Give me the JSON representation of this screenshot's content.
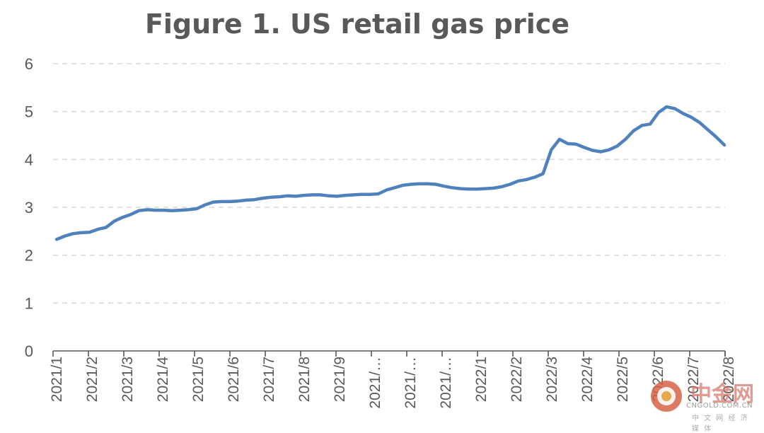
{
  "chart_data": {
    "type": "line",
    "title": "Figure 1. US retail gas price",
    "xlabel": "",
    "ylabel": "",
    "ylim": [
      0,
      6
    ],
    "yticks": [
      "0",
      "1",
      "2",
      "3",
      "4",
      "5",
      "6"
    ],
    "xtick_labels": [
      "2021/1",
      "2021/2",
      "2021/3",
      "2021/4",
      "2021/5",
      "2021/6",
      "2021/7",
      "2021/8",
      "2021/9",
      "2021/…",
      "2021/…",
      "2021/…",
      "2022/1",
      "2022/2",
      "2022/3",
      "2022/4",
      "2022/5",
      "2022/6",
      "2022/7",
      "2022/8"
    ],
    "grid": true,
    "line_color": "#4f81bd",
    "series": [
      {
        "values": [
          2.33,
          2.4,
          2.45,
          2.47,
          2.48,
          2.54,
          2.58,
          2.71,
          2.79,
          2.85,
          2.93,
          2.95,
          2.94,
          2.94,
          2.93,
          2.94,
          2.95,
          2.97,
          3.05,
          3.11,
          3.12,
          3.12,
          3.13,
          3.15,
          3.16,
          3.19,
          3.21,
          3.22,
          3.24,
          3.23,
          3.25,
          3.26,
          3.26,
          3.24,
          3.23,
          3.25,
          3.26,
          3.27,
          3.27,
          3.28,
          3.36,
          3.41,
          3.46,
          3.48,
          3.49,
          3.49,
          3.48,
          3.44,
          3.41,
          3.39,
          3.38,
          3.38,
          3.39,
          3.4,
          3.43,
          3.48,
          3.55,
          3.58,
          3.63,
          3.7,
          4.2,
          4.42,
          4.33,
          4.32,
          4.25,
          4.19,
          4.16,
          4.2,
          4.28,
          4.42,
          4.6,
          4.71,
          4.74,
          4.98,
          5.1,
          5.06,
          4.96,
          4.88,
          4.77,
          4.62,
          4.47,
          4.3
        ]
      }
    ]
  },
  "watermark": {
    "brand_cn": "中金网",
    "brand_en": "CNGOLD.COM.CN",
    "tagline": "中 文 网 经 济 媒 体"
  }
}
